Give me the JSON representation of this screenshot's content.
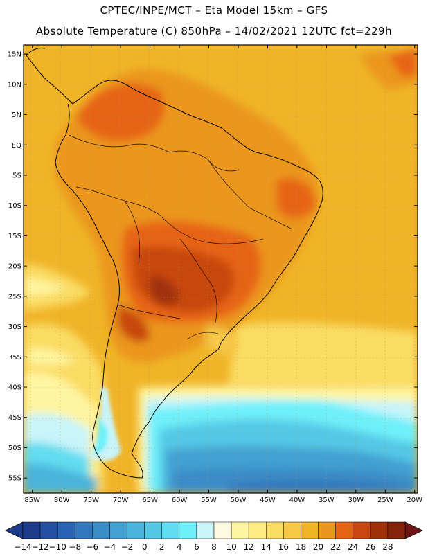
{
  "header": {
    "line1": "CPTEC/INPE/MCT –  Eta Model 15km – GFS",
    "line2": "Absolute Temperature (C) 850hPa – 14/02/2021 12UTC fct=229h"
  },
  "map": {
    "lat_labels": [
      "15N",
      "10N",
      "5N",
      "EQ",
      "5S",
      "10S",
      "15S",
      "20S",
      "25S",
      "30S",
      "35S",
      "40S",
      "45S",
      "50S",
      "55S"
    ],
    "lon_labels": [
      "85W",
      "80W",
      "75W",
      "70W",
      "65W",
      "60W",
      "55W",
      "50W",
      "45W",
      "40W",
      "35W",
      "30W",
      "25W",
      "20W"
    ],
    "lat_values": [
      15,
      10,
      5,
      0,
      -5,
      -10,
      -15,
      -20,
      -25,
      -30,
      -35,
      -40,
      -45,
      -50,
      -55
    ],
    "lon_values": [
      -85,
      -80,
      -75,
      -70,
      -65,
      -60,
      -55,
      -50,
      -45,
      -40,
      -35,
      -30,
      -25,
      -20
    ],
    "lat_range": [
      -57.5,
      16.5
    ],
    "lon_range": [
      -86.5,
      -19.5
    ]
  },
  "colorbar": {
    "labels": [
      "-14",
      "-12",
      "-10",
      "-8",
      "-6",
      "-4",
      "-2",
      "0",
      "2",
      "4",
      "6",
      "8",
      "10",
      "12",
      "14",
      "16",
      "18",
      "20",
      "22",
      "24",
      "26",
      "28"
    ],
    "colors": [
      "#1e3c8c",
      "#2350a0",
      "#2a64b4",
      "#3278be",
      "#3a8cc8",
      "#42a0d2",
      "#4ab4dc",
      "#55c8e6",
      "#62dcf0",
      "#6ef0fa",
      "#c8f4fa",
      "#fffae1",
      "#fff5a0",
      "#ffeb82",
      "#fadc64",
      "#f5c846",
      "#f0b428",
      "#eb961e",
      "#e66414",
      "#c8460f",
      "#a0320a",
      "#82230a"
    ],
    "low_color": "#1e3c8c",
    "high_color": "#6e1414"
  }
}
